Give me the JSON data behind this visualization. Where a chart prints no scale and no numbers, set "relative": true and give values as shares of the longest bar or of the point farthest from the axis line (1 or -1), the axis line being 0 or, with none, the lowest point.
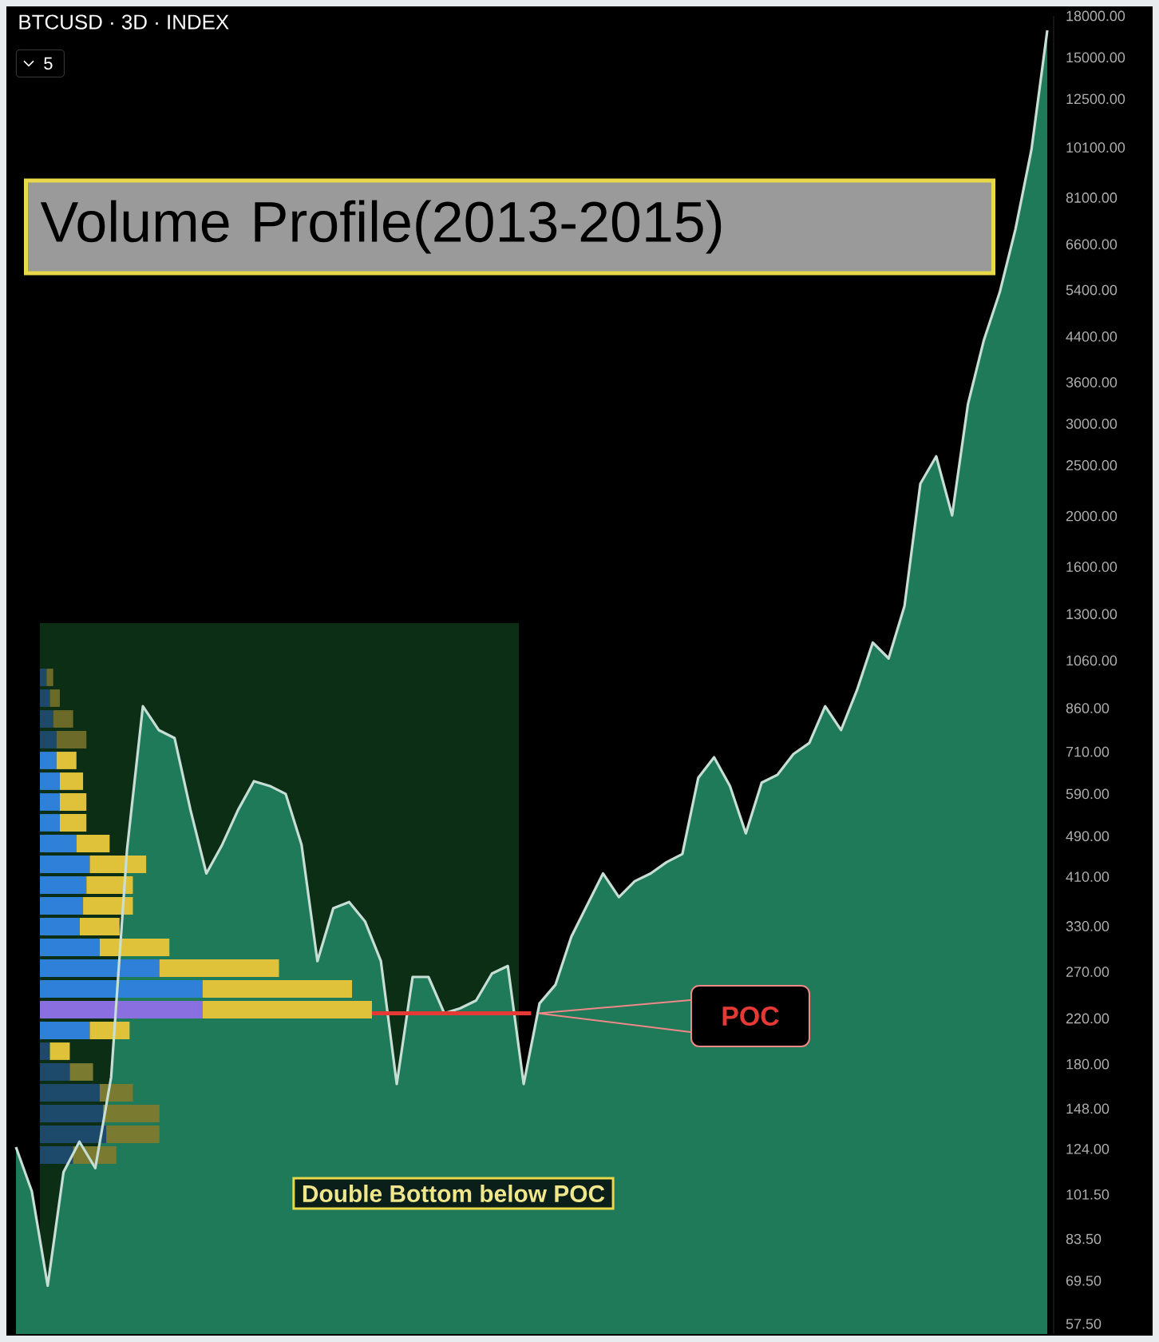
{
  "chart_data": [
    {
      "type": "area",
      "title": "Volume Profile(2013-2015)",
      "subtitle": "BTCUSD · 3D · INDEX",
      "annotations": [
        "5",
        "Double Bottom below POC"
      ],
      "categories": [
        null,
        null,
        null,
        null,
        null,
        null,
        null,
        null,
        null,
        null,
        null,
        null,
        null,
        null,
        null,
        null,
        null,
        null,
        null,
        null,
        null,
        null,
        null,
        null,
        null,
        null,
        null,
        null,
        null,
        null,
        null,
        null,
        null,
        null,
        null,
        null,
        null,
        null,
        null,
        null,
        null,
        null,
        null,
        null,
        null,
        null,
        null,
        null,
        null,
        null,
        null,
        null,
        null,
        null,
        null,
        null,
        null,
        null,
        null,
        null,
        null,
        null,
        null,
        null,
        null,
        null
      ],
      "series": [
        {
          "color": "#1f7a5a",
          "values": [
            125,
            103,
            68,
            112,
            128,
            114,
            170,
            462,
            867,
            781,
            754,
            550,
            416,
            472,
            550,
            624,
            611,
            590,
            472,
            283,
            357,
            367,
            337,
            283,
            165,
            264,
            264,
            225,
            230,
            238,
            268,
            277,
            165,
            235,
            255,
            315,
            362,
            416,
            375,
            402,
            416,
            437,
            453,
            633,
            693,
            611,
            496,
            620,
            642,
            703,
            738,
            867,
            781,
            930,
            1147,
            1070,
            1347,
            2306,
            2600,
            2006,
            3272,
            4330,
            5342,
            7067,
            10000,
            16900
          ]
        }
      ],
      "log": true,
      "ylim": [
        55,
        18000
      ],
      "yticks": [
        {
          "value": 57.5,
          "label": "57.50"
        },
        {
          "value": 69.5,
          "label": "69.50"
        },
        {
          "value": 83.5,
          "label": "83.50"
        },
        {
          "value": 101.5,
          "label": "101.50"
        },
        {
          "value": 124,
          "label": "124.00"
        },
        {
          "value": 148,
          "label": "148.00"
        },
        {
          "value": 180,
          "label": "180.00"
        },
        {
          "value": 220,
          "label": "220.00"
        },
        {
          "value": 270,
          "label": "270.00"
        },
        {
          "value": 330,
          "label": "330.00"
        },
        {
          "value": 410,
          "label": "410.00"
        },
        {
          "value": 490,
          "label": "490.00"
        },
        {
          "value": 590,
          "label": "590.00"
        },
        {
          "value": 710,
          "label": "710.00"
        },
        {
          "value": 860,
          "label": "860.00"
        },
        {
          "value": 1060,
          "label": "1060.00"
        },
        {
          "value": 1300,
          "label": "1300.00"
        },
        {
          "value": 1600,
          "label": "1600.00"
        },
        {
          "value": 2000,
          "label": "2000.00"
        },
        {
          "value": 2500,
          "label": "2500.00"
        },
        {
          "value": 3000,
          "label": "3000.00"
        },
        {
          "value": 3600,
          "label": "3600.00"
        },
        {
          "value": 4400,
          "label": "4400.00"
        },
        {
          "value": 5400,
          "label": "5400.00"
        },
        {
          "value": 6600,
          "label": "6600.00"
        },
        {
          "value": 8100,
          "label": "8100.00"
        },
        {
          "value": 10100,
          "label": "10100.00"
        },
        {
          "value": 12500,
          "label": "12500.00"
        },
        {
          "value": 15000,
          "label": "15000.00"
        },
        {
          "value": 18000,
          "label": "18000.00"
        }
      ],
      "ref_lines": [
        {
          "axis": "y",
          "value": 225,
          "label": "POC",
          "color": "#e53935"
        }
      ],
      "tick_labels": "y"
    },
    {
      "type": "bar",
      "orientation": "horizontal",
      "stacked": true,
      "relative": true,
      "categories": [
        null,
        null,
        null,
        null,
        null,
        null,
        null,
        null,
        null,
        null,
        null,
        null,
        null,
        null,
        null,
        null,
        null,
        null,
        null,
        null,
        null,
        null,
        null,
        null
      ],
      "series": [
        {
          "values": [
            0.02,
            0.03,
            0.04,
            0.05,
            0.05,
            0.06,
            0.06,
            0.06,
            0.11,
            0.15,
            0.14,
            0.13,
            0.12,
            0.18,
            0.36,
            0.49,
            0.49,
            0.15,
            0.03,
            0.09,
            0.18,
            0.19,
            0.2,
            0.1
          ],
          "colors": [
            "#1d4a6b",
            "#1d4a6b",
            "#1d4a6b",
            "#1d4a6b",
            "#2f80d8",
            "#2f80d8",
            "#2f80d8",
            "#2f80d8",
            "#2f80d8",
            "#2f80d8",
            "#2f80d8",
            "#2f80d8",
            "#2f80d8",
            "#2f80d8",
            "#2f80d8",
            "#2f80d8",
            "#8a6fe0",
            "#2f80d8",
            "#1d4a6b",
            "#1d4a6b",
            "#1d4a6b",
            "#1d4a6b",
            "#1d4a6b",
            "#1d4a6b"
          ]
        },
        {
          "values": [
            0.02,
            0.03,
            0.06,
            0.09,
            0.06,
            0.07,
            0.08,
            0.08,
            0.1,
            0.17,
            0.14,
            0.15,
            0.12,
            0.21,
            0.36,
            0.45,
            0.51,
            0.12,
            0.06,
            0.07,
            0.1,
            0.17,
            0.16,
            0.13
          ],
          "colors": [
            "#6b6a28",
            "#6b6a28",
            "#6b6a28",
            "#6b6a28",
            "#e0c23a",
            "#e0c23a",
            "#e0c23a",
            "#e0c23a",
            "#e0c23a",
            "#e0c23a",
            "#e0c23a",
            "#e0c23a",
            "#e0c23a",
            "#e0c23a",
            "#e0c23a",
            "#e0c23a",
            "#e0c23a",
            "#e0c23a",
            "#e0c23a",
            "#7a7a30",
            "#7a7a30",
            "#7a7a30",
            "#7a7a30",
            "#7a7a30"
          ]
        }
      ]
    }
  ]
}
